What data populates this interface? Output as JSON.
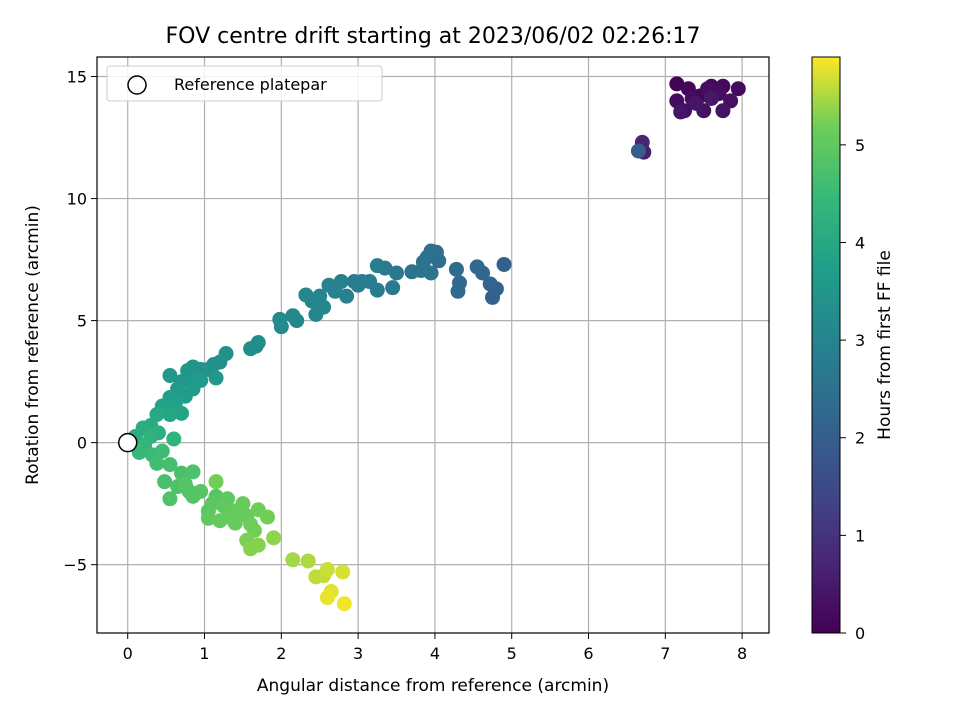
{
  "chart_data": {
    "type": "scatter",
    "title": "FOV centre drift starting at 2023/06/02 02:26:17",
    "xlabel": "Angular distance from reference (arcmin)",
    "ylabel": "Rotation from reference (arcmin)",
    "xlim": [
      -0.4,
      8.35
    ],
    "ylim": [
      -7.8,
      15.8
    ],
    "xticks": [
      0,
      1,
      2,
      3,
      4,
      5,
      6,
      7,
      8
    ],
    "yticks": [
      -5,
      0,
      5,
      10,
      15
    ],
    "grid": true,
    "legend": {
      "position": "top-left",
      "entries": [
        "Reference platepar"
      ]
    },
    "reference_point": {
      "label": "Reference platepar",
      "x": 0,
      "y": 0
    },
    "colorbar": {
      "label": "Hours from first FF file",
      "colormap": "viridis",
      "range": [
        0,
        5.9
      ],
      "ticks": [
        0,
        1,
        2,
        3,
        4,
        5
      ]
    },
    "points": [
      {
        "x": 7.15,
        "y": 14.7,
        "c": 0.05
      },
      {
        "x": 7.3,
        "y": 14.5,
        "c": 0.1
      },
      {
        "x": 7.45,
        "y": 14.2,
        "c": 0.1
      },
      {
        "x": 7.6,
        "y": 14.6,
        "c": 0.15
      },
      {
        "x": 7.75,
        "y": 14.6,
        "c": 0.15
      },
      {
        "x": 7.95,
        "y": 14.5,
        "c": 0.2
      },
      {
        "x": 7.15,
        "y": 14.0,
        "c": 0.2
      },
      {
        "x": 7.35,
        "y": 14.1,
        "c": 0.2
      },
      {
        "x": 7.55,
        "y": 14.5,
        "c": 0.25
      },
      {
        "x": 7.7,
        "y": 14.3,
        "c": 0.25
      },
      {
        "x": 7.85,
        "y": 14.0,
        "c": 0.3
      },
      {
        "x": 7.25,
        "y": 13.6,
        "c": 0.3
      },
      {
        "x": 7.5,
        "y": 13.6,
        "c": 0.35
      },
      {
        "x": 7.75,
        "y": 13.6,
        "c": 0.35
      },
      {
        "x": 7.2,
        "y": 13.55,
        "c": 0.4
      },
      {
        "x": 7.4,
        "y": 13.9,
        "c": 0.4
      },
      {
        "x": 7.6,
        "y": 14.1,
        "c": 0.45
      },
      {
        "x": 6.72,
        "y": 11.9,
        "c": 0.6
      },
      {
        "x": 6.7,
        "y": 12.3,
        "c": 0.7
      },
      {
        "x": 6.65,
        "y": 11.95,
        "c": 2.0
      },
      {
        "x": 4.9,
        "y": 7.3,
        "c": 2.05
      },
      {
        "x": 4.8,
        "y": 6.3,
        "c": 2.1
      },
      {
        "x": 4.75,
        "y": 5.95,
        "c": 2.1
      },
      {
        "x": 4.72,
        "y": 6.5,
        "c": 2.15
      },
      {
        "x": 4.62,
        "y": 6.95,
        "c": 2.2
      },
      {
        "x": 4.55,
        "y": 7.2,
        "c": 2.25
      },
      {
        "x": 4.3,
        "y": 6.2,
        "c": 2.3
      },
      {
        "x": 4.32,
        "y": 6.55,
        "c": 2.3
      },
      {
        "x": 4.28,
        "y": 7.1,
        "c": 2.35
      },
      {
        "x": 4.05,
        "y": 7.45,
        "c": 2.4
      },
      {
        "x": 4.02,
        "y": 7.8,
        "c": 2.4
      },
      {
        "x": 3.95,
        "y": 7.85,
        "c": 2.45
      },
      {
        "x": 3.9,
        "y": 7.6,
        "c": 2.5
      },
      {
        "x": 3.85,
        "y": 7.4,
        "c": 2.5
      },
      {
        "x": 3.95,
        "y": 6.95,
        "c": 2.55
      },
      {
        "x": 3.82,
        "y": 7.05,
        "c": 2.6
      },
      {
        "x": 3.7,
        "y": 7.0,
        "c": 2.6
      },
      {
        "x": 3.5,
        "y": 6.95,
        "c": 2.65
      },
      {
        "x": 3.45,
        "y": 6.35,
        "c": 2.7
      },
      {
        "x": 3.35,
        "y": 7.15,
        "c": 2.7
      },
      {
        "x": 3.25,
        "y": 7.25,
        "c": 2.75
      },
      {
        "x": 3.25,
        "y": 6.25,
        "c": 2.75
      },
      {
        "x": 3.15,
        "y": 6.6,
        "c": 2.8
      },
      {
        "x": 3.05,
        "y": 6.6,
        "c": 2.8
      },
      {
        "x": 3.0,
        "y": 6.45,
        "c": 2.85
      },
      {
        "x": 2.95,
        "y": 6.6,
        "c": 2.85
      },
      {
        "x": 2.85,
        "y": 6.0,
        "c": 2.9
      },
      {
        "x": 2.78,
        "y": 6.6,
        "c": 2.9
      },
      {
        "x": 2.7,
        "y": 6.2,
        "c": 2.95
      },
      {
        "x": 2.62,
        "y": 6.45,
        "c": 2.95
      },
      {
        "x": 2.55,
        "y": 5.55,
        "c": 3.0
      },
      {
        "x": 2.5,
        "y": 6.0,
        "c": 3.0
      },
      {
        "x": 2.45,
        "y": 5.25,
        "c": 3.05
      },
      {
        "x": 2.4,
        "y": 5.8,
        "c": 3.05
      },
      {
        "x": 2.32,
        "y": 6.05,
        "c": 3.1
      },
      {
        "x": 2.2,
        "y": 5.0,
        "c": 3.1
      },
      {
        "x": 2.15,
        "y": 5.2,
        "c": 3.15
      },
      {
        "x": 2.0,
        "y": 4.75,
        "c": 3.15
      },
      {
        "x": 1.98,
        "y": 5.05,
        "c": 3.2
      },
      {
        "x": 1.7,
        "y": 4.1,
        "c": 3.25
      },
      {
        "x": 1.67,
        "y": 3.95,
        "c": 3.25
      },
      {
        "x": 1.6,
        "y": 3.85,
        "c": 3.3
      },
      {
        "x": 1.28,
        "y": 3.65,
        "c": 3.35
      },
      {
        "x": 1.2,
        "y": 3.3,
        "c": 3.35
      },
      {
        "x": 1.12,
        "y": 3.2,
        "c": 3.4
      },
      {
        "x": 1.05,
        "y": 3.0,
        "c": 3.4
      },
      {
        "x": 0.95,
        "y": 3.0,
        "c": 3.45
      },
      {
        "x": 0.85,
        "y": 3.1,
        "c": 3.45
      },
      {
        "x": 0.78,
        "y": 2.95,
        "c": 3.5
      },
      {
        "x": 0.8,
        "y": 2.6,
        "c": 3.5
      },
      {
        "x": 0.7,
        "y": 2.5,
        "c": 3.55
      },
      {
        "x": 0.55,
        "y": 2.75,
        "c": 3.55
      },
      {
        "x": 1.15,
        "y": 2.65,
        "c": 3.55
      },
      {
        "x": 0.95,
        "y": 2.55,
        "c": 3.6
      },
      {
        "x": 0.65,
        "y": 2.2,
        "c": 3.6
      },
      {
        "x": 0.85,
        "y": 2.2,
        "c": 3.65
      },
      {
        "x": 0.75,
        "y": 1.9,
        "c": 3.7
      },
      {
        "x": 0.55,
        "y": 1.85,
        "c": 3.75
      },
      {
        "x": 0.62,
        "y": 1.6,
        "c": 3.8
      },
      {
        "x": 0.45,
        "y": 1.5,
        "c": 3.85
      },
      {
        "x": 0.7,
        "y": 1.2,
        "c": 3.9
      },
      {
        "x": 0.55,
        "y": 1.15,
        "c": 3.95
      },
      {
        "x": 0.38,
        "y": 1.15,
        "c": 4.0
      },
      {
        "x": 0.3,
        "y": 0.7,
        "c": 4.05
      },
      {
        "x": 0.2,
        "y": 0.6,
        "c": 4.1
      },
      {
        "x": 0.1,
        "y": 0.25,
        "c": 4.15
      },
      {
        "x": 0.4,
        "y": 0.4,
        "c": 4.2
      },
      {
        "x": 0.3,
        "y": 0.25,
        "c": 4.25
      },
      {
        "x": 0.6,
        "y": 0.15,
        "c": 4.3
      },
      {
        "x": 0.22,
        "y": -0.1,
        "c": 4.4
      },
      {
        "x": 0.15,
        "y": -0.4,
        "c": 4.45
      },
      {
        "x": 0.32,
        "y": -0.5,
        "c": 4.5
      },
      {
        "x": 0.45,
        "y": -0.35,
        "c": 4.55
      },
      {
        "x": 0.38,
        "y": -0.85,
        "c": 4.6
      },
      {
        "x": 0.55,
        "y": -0.9,
        "c": 4.65
      },
      {
        "x": 0.48,
        "y": -1.6,
        "c": 4.7
      },
      {
        "x": 0.7,
        "y": -1.25,
        "c": 4.7
      },
      {
        "x": 0.65,
        "y": -1.8,
        "c": 4.75
      },
      {
        "x": 0.85,
        "y": -1.2,
        "c": 4.75
      },
      {
        "x": 0.55,
        "y": -2.3,
        "c": 4.8
      },
      {
        "x": 0.8,
        "y": -2.0,
        "c": 4.8
      },
      {
        "x": 0.85,
        "y": -2.2,
        "c": 4.85
      },
      {
        "x": 0.75,
        "y": -1.7,
        "c": 4.85
      },
      {
        "x": 0.95,
        "y": -2.0,
        "c": 4.9
      },
      {
        "x": 1.15,
        "y": -2.2,
        "c": 4.9
      },
      {
        "x": 1.1,
        "y": -2.5,
        "c": 4.95
      },
      {
        "x": 1.05,
        "y": -2.8,
        "c": 4.95
      },
      {
        "x": 1.25,
        "y": -2.6,
        "c": 5.0
      },
      {
        "x": 1.3,
        "y": -2.3,
        "c": 5.0
      },
      {
        "x": 1.05,
        "y": -3.1,
        "c": 5.0
      },
      {
        "x": 1.2,
        "y": -3.2,
        "c": 5.05
      },
      {
        "x": 1.3,
        "y": -3.05,
        "c": 5.05
      },
      {
        "x": 1.4,
        "y": -2.8,
        "c": 5.05
      },
      {
        "x": 1.5,
        "y": -2.5,
        "c": 5.1
      },
      {
        "x": 1.55,
        "y": -3.0,
        "c": 5.1
      },
      {
        "x": 1.4,
        "y": -3.3,
        "c": 5.1
      },
      {
        "x": 1.6,
        "y": -3.35,
        "c": 5.15
      },
      {
        "x": 1.7,
        "y": -2.75,
        "c": 5.15
      },
      {
        "x": 1.65,
        "y": -3.6,
        "c": 5.2
      },
      {
        "x": 1.82,
        "y": -3.05,
        "c": 5.2
      },
      {
        "x": 1.15,
        "y": -1.6,
        "c": 5.2
      },
      {
        "x": 1.55,
        "y": -4.0,
        "c": 5.25
      },
      {
        "x": 1.7,
        "y": -4.2,
        "c": 5.3
      },
      {
        "x": 1.6,
        "y": -4.35,
        "c": 5.3
      },
      {
        "x": 1.9,
        "y": -3.9,
        "c": 5.35
      },
      {
        "x": 2.15,
        "y": -4.8,
        "c": 5.45
      },
      {
        "x": 2.35,
        "y": -4.85,
        "c": 5.5
      },
      {
        "x": 2.45,
        "y": -5.5,
        "c": 5.6
      },
      {
        "x": 2.55,
        "y": -5.45,
        "c": 5.6
      },
      {
        "x": 2.6,
        "y": -5.2,
        "c": 5.65
      },
      {
        "x": 2.8,
        "y": -5.3,
        "c": 5.7
      },
      {
        "x": 2.65,
        "y": -6.1,
        "c": 5.75
      },
      {
        "x": 2.6,
        "y": -6.35,
        "c": 5.8
      },
      {
        "x": 2.82,
        "y": -6.6,
        "c": 5.85
      }
    ]
  }
}
